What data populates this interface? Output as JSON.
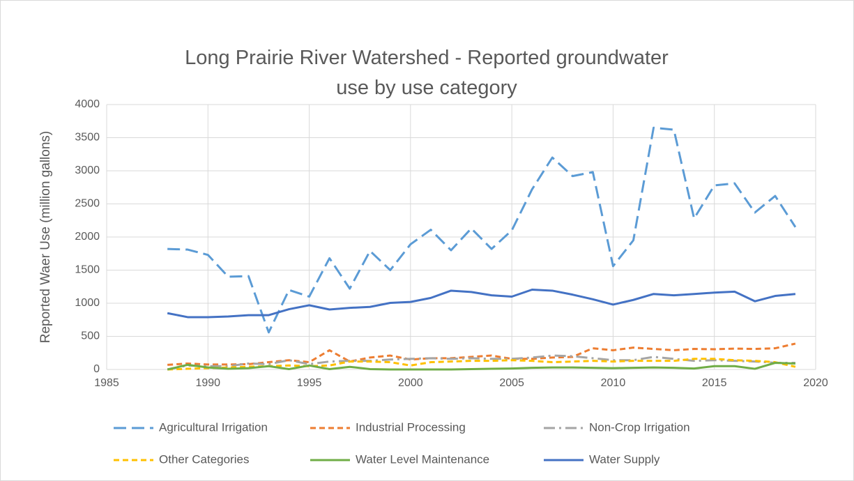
{
  "chart_data": {
    "type": "line",
    "title": "Long Prairie River Watershed - Reported groundwater use by use category",
    "y_label": "Reported Waer Use (million gallons)",
    "x": [
      1988,
      1989,
      1990,
      1991,
      1992,
      1993,
      1994,
      1995,
      1996,
      1997,
      1998,
      1999,
      2000,
      2001,
      2002,
      2003,
      2004,
      2005,
      2006,
      2007,
      2008,
      2009,
      2010,
      2011,
      2012,
      2013,
      2014,
      2015,
      2016,
      2017,
      2018,
      2019
    ],
    "xlim": [
      1985,
      2020
    ],
    "xticks": [
      1985,
      1990,
      1995,
      2000,
      2005,
      2010,
      2015,
      2020
    ],
    "ylim": [
      0,
      4000
    ],
    "yticks": [
      0,
      500,
      1000,
      1500,
      2000,
      2500,
      3000,
      3500,
      4000
    ],
    "grid": true,
    "legend": "bottom",
    "series": [
      {
        "name": "Agricultural Irrigation",
        "color": "#5b9bd5",
        "dash": "long-dash",
        "values": [
          1820,
          1810,
          1730,
          1400,
          1410,
          560,
          1200,
          1100,
          1680,
          1220,
          1790,
          1500,
          1890,
          2110,
          1800,
          2130,
          1820,
          2100,
          2720,
          3200,
          2920,
          2980,
          1560,
          1950,
          3650,
          3620,
          2280,
          2780,
          2810,
          2370,
          2620,
          2150
        ]
      },
      {
        "name": "Industrial Processing",
        "color": "#ed7d31",
        "dash": "dash",
        "values": [
          70,
          90,
          75,
          75,
          80,
          110,
          140,
          110,
          290,
          120,
          180,
          210,
          150,
          170,
          170,
          190,
          210,
          160,
          160,
          180,
          190,
          320,
          290,
          330,
          310,
          290,
          310,
          305,
          315,
          310,
          320,
          390
        ]
      },
      {
        "name": "Non-Crop Irrigation",
        "color": "#a5a5a5",
        "dash": "dash-dot",
        "values": [
          0,
          60,
          50,
          50,
          90,
          80,
          140,
          80,
          120,
          130,
          130,
          150,
          160,
          170,
          160,
          170,
          160,
          160,
          180,
          210,
          200,
          170,
          140,
          140,
          190,
          160,
          130,
          140,
          130,
          120,
          100,
          100
        ]
      },
      {
        "name": "Other Categories",
        "color": "#ffc000",
        "dash": "dash",
        "values": [
          0,
          10,
          20,
          30,
          40,
          50,
          60,
          50,
          60,
          120,
          120,
          110,
          60,
          110,
          120,
          130,
          130,
          140,
          130,
          110,
          120,
          130,
          120,
          130,
          130,
          130,
          160,
          160,
          140,
          130,
          110,
          40
        ]
      },
      {
        "name": "Water Level Maintenance",
        "color": "#70ad47",
        "dash": "solid",
        "values": [
          0,
          70,
          30,
          10,
          20,
          50,
          5,
          60,
          5,
          40,
          5,
          0,
          0,
          0,
          0,
          5,
          10,
          15,
          25,
          30,
          30,
          25,
          20,
          25,
          30,
          25,
          15,
          50,
          50,
          10,
          100,
          90
        ]
      },
      {
        "name": "Water Supply",
        "color": "#4472c4",
        "dash": "solid",
        "values": [
          850,
          790,
          790,
          800,
          820,
          820,
          910,
          970,
          905,
          930,
          945,
          1005,
          1020,
          1080,
          1190,
          1170,
          1120,
          1100,
          1205,
          1190,
          1130,
          1060,
          980,
          1050,
          1140,
          1120,
          1140,
          1160,
          1175,
          1030,
          1110,
          1140
        ]
      }
    ]
  }
}
